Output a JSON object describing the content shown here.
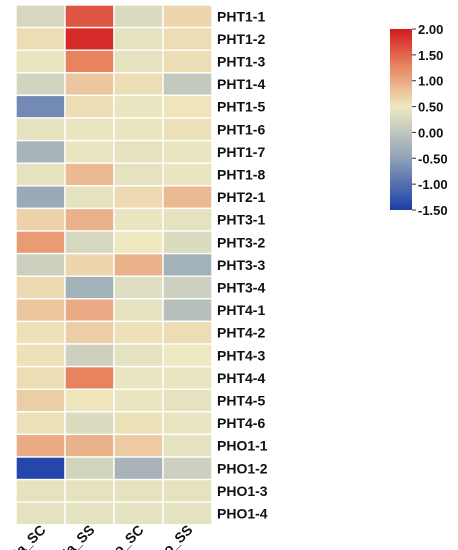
{
  "chart_data": {
    "type": "heatmap",
    "columns": [
      "Ea_SC",
      "Ea_SS",
      "Co_SC",
      "Co_SS"
    ],
    "rows": [
      "PHT1-1",
      "PHT1-2",
      "PHT1-3",
      "PHT1-4",
      "PHT1-5",
      "PHT1-6",
      "PHT1-7",
      "PHT1-8",
      "PHT2-1",
      "PHT3-1",
      "PHT3-2",
      "PHT3-3",
      "PHT3-4",
      "PHT4-1",
      "PHT4-2",
      "PHT4-3",
      "PHT4-4",
      "PHT4-5",
      "PHT4-6",
      "PHO1-1",
      "PHO1-2",
      "PHO1-3",
      "PHO1-4"
    ],
    "values": [
      [
        -0.25,
        1.6,
        -0.2,
        0.25
      ],
      [
        0.15,
        1.9,
        -0.1,
        0.15
      ],
      [
        -0.05,
        1.3,
        -0.1,
        0.15
      ],
      [
        -0.3,
        0.45,
        0.15,
        -0.45
      ],
      [
        -1.1,
        0.15,
        -0.05,
        0.05
      ],
      [
        -0.1,
        -0.05,
        -0.05,
        0.1
      ],
      [
        -0.75,
        -0.05,
        -0.1,
        -0.05
      ],
      [
        -0.1,
        0.6,
        -0.1,
        -0.05
      ],
      [
        -0.9,
        -0.1,
        0.2,
        0.6
      ],
      [
        0.3,
        0.7,
        -0.05,
        -0.1
      ],
      [
        1.0,
        -0.25,
        0.0,
        -0.2
      ],
      [
        -0.35,
        0.25,
        0.7,
        -0.8
      ],
      [
        0.2,
        -0.8,
        -0.15,
        -0.35
      ],
      [
        0.45,
        0.8,
        -0.1,
        -0.6
      ],
      [
        0.1,
        0.35,
        0.1,
        0.15
      ],
      [
        0.1,
        -0.35,
        -0.1,
        0.0
      ],
      [
        0.15,
        1.3,
        -0.05,
        -0.05
      ],
      [
        0.35,
        0.05,
        -0.05,
        -0.1
      ],
      [
        0.1,
        -0.2,
        0.1,
        -0.05
      ],
      [
        0.8,
        0.7,
        0.4,
        -0.1
      ],
      [
        -1.45,
        -0.3,
        -0.75,
        -0.35
      ],
      [
        -0.1,
        -0.1,
        -0.1,
        -0.1
      ],
      [
        -0.1,
        -0.1,
        -0.1,
        -0.1
      ]
    ],
    "colorbar": {
      "min": -1.5,
      "max": 2.0,
      "ticks": [
        "2.00",
        "1.50",
        "1.00",
        "0.50",
        "0.00",
        "-0.50",
        "-1.00",
        "-1.50"
      ],
      "colors": {
        "low": "#1a3ea8",
        "mid": "#eee9c1",
        "high": "#d11b1f"
      }
    },
    "grid": true,
    "legend": "right"
  }
}
